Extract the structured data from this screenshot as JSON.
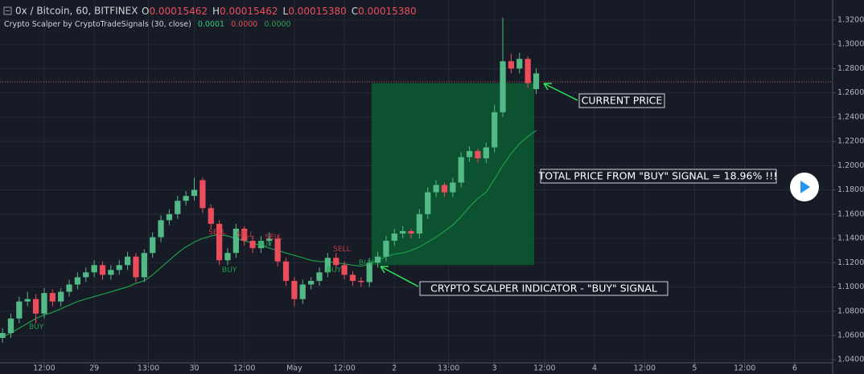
{
  "chart_data": {
    "type": "candlestick",
    "title": "0x / Bitcoin, 60, BITFINEX",
    "ohlc_header": [
      {
        "label": "O",
        "value": "0.00015462"
      },
      {
        "label": "H",
        "value": "0.00015462"
      },
      {
        "label": "L",
        "value": "0.00015380"
      },
      {
        "label": "C",
        "value": "0.00015380"
      }
    ],
    "indicator": {
      "name": "Crypto Scalper by CryptoTradeSignals (30, close)",
      "readouts": [
        "0.0001",
        "0.0000",
        "0.0000"
      ],
      "readout_colors": [
        "#26d07c",
        "#e0505c",
        "#2e9e55"
      ],
      "color": "#1e9e4a",
      "values": [
        1.059,
        1.062,
        1.066,
        1.07,
        1.074,
        1.077,
        1.079,
        1.082,
        1.085,
        1.088,
        1.09,
        1.092,
        1.094,
        1.096,
        1.098,
        1.1,
        1.103,
        1.105,
        1.11,
        1.116,
        1.122,
        1.128,
        1.133,
        1.137,
        1.14,
        1.142,
        1.143,
        1.142,
        1.14,
        1.138,
        1.136,
        1.134,
        1.132,
        1.13,
        1.128,
        1.126,
        1.124,
        1.122,
        1.121,
        1.121,
        1.12,
        1.119,
        1.118,
        1.117,
        1.119,
        1.122,
        1.125,
        1.127,
        1.128,
        1.13,
        1.133,
        1.137,
        1.141,
        1.146,
        1.151,
        1.158,
        1.166,
        1.173,
        1.178,
        1.189,
        1.2,
        1.21,
        1.218,
        1.224,
        1.229
      ]
    },
    "up_color": "#53b987",
    "down_color": "#eb4d5c",
    "x": [
      2,
      4,
      6,
      8,
      10,
      12,
      14,
      16,
      18,
      20,
      22,
      24,
      26,
      28,
      30,
      32,
      34,
      36,
      38,
      40,
      42,
      44,
      46,
      48,
      50,
      52,
      54,
      56,
      58,
      60,
      62,
      64,
      66,
      68,
      70,
      72,
      74,
      76,
      78,
      80,
      82,
      84,
      86,
      88,
      90,
      92,
      94,
      96,
      98,
      100,
      102,
      104,
      106,
      108,
      110,
      112,
      114,
      116,
      118,
      120,
      122,
      124,
      126,
      128,
      130
    ],
    "open": [
      1.058,
      1.062,
      1.074,
      1.088,
      1.09,
      1.078,
      1.095,
      1.088,
      1.096,
      1.102,
      1.108,
      1.112,
      1.118,
      1.11,
      1.114,
      1.118,
      1.125,
      1.108,
      1.128,
      1.141,
      1.155,
      1.16,
      1.171,
      1.175,
      1.188,
      1.165,
      1.152,
      1.122,
      1.128,
      1.148,
      1.138,
      1.132,
      1.138,
      1.14,
      1.121,
      1.105,
      1.09,
      1.102,
      1.105,
      1.112,
      1.124,
      1.118,
      1.11,
      1.105,
      1.104,
      1.12,
      1.125,
      1.138,
      1.144,
      1.146,
      1.144,
      1.16,
      1.178,
      1.184,
      1.178,
      1.186,
      1.207,
      1.212,
      1.206,
      1.215,
      1.244,
      1.286,
      1.28,
      1.288,
      1.263
    ],
    "high": [
      1.066,
      1.078,
      1.092,
      1.096,
      1.094,
      1.099,
      1.098,
      1.099,
      1.106,
      1.112,
      1.116,
      1.122,
      1.121,
      1.118,
      1.122,
      1.129,
      1.128,
      1.131,
      1.145,
      1.159,
      1.164,
      1.175,
      1.179,
      1.19,
      1.19,
      1.168,
      1.155,
      1.132,
      1.152,
      1.15,
      1.142,
      1.142,
      1.145,
      1.143,
      1.124,
      1.108,
      1.106,
      1.108,
      1.116,
      1.128,
      1.128,
      1.121,
      1.113,
      1.108,
      1.124,
      1.129,
      1.142,
      1.148,
      1.15,
      1.148,
      1.164,
      1.182,
      1.188,
      1.186,
      1.19,
      1.211,
      1.216,
      1.214,
      1.219,
      1.25,
      1.322,
      1.292,
      1.293,
      1.29,
      1.28
    ],
    "low": [
      1.054,
      1.058,
      1.07,
      1.084,
      1.07,
      1.074,
      1.084,
      1.084,
      1.092,
      1.098,
      1.104,
      1.108,
      1.106,
      1.106,
      1.11,
      1.114,
      1.104,
      1.104,
      1.124,
      1.137,
      1.151,
      1.156,
      1.167,
      1.171,
      1.161,
      1.148,
      1.118,
      1.118,
      1.124,
      1.134,
      1.128,
      1.128,
      1.134,
      1.117,
      1.101,
      1.084,
      1.086,
      1.098,
      1.101,
      1.108,
      1.114,
      1.106,
      1.101,
      1.1,
      1.1,
      1.116,
      1.121,
      1.134,
      1.14,
      1.14,
      1.14,
      1.156,
      1.174,
      1.174,
      1.174,
      1.182,
      1.203,
      1.202,
      1.202,
      1.211,
      1.24,
      1.276,
      1.276,
      1.264,
      1.259
    ],
    "close": [
      1.062,
      1.074,
      1.088,
      1.09,
      1.078,
      1.095,
      1.088,
      1.096,
      1.102,
      1.108,
      1.112,
      1.118,
      1.11,
      1.114,
      1.118,
      1.125,
      1.108,
      1.128,
      1.141,
      1.155,
      1.16,
      1.171,
      1.175,
      1.18,
      1.165,
      1.152,
      1.122,
      1.128,
      1.148,
      1.138,
      1.132,
      1.138,
      1.14,
      1.121,
      1.105,
      1.09,
      1.102,
      1.105,
      1.112,
      1.124,
      1.118,
      1.11,
      1.105,
      1.104,
      1.12,
      1.125,
      1.138,
      1.144,
      1.146,
      1.144,
      1.16,
      1.178,
      1.184,
      1.178,
      1.186,
      1.207,
      1.212,
      1.206,
      1.215,
      1.244,
      1.286,
      1.28,
      1.288,
      1.268,
      1.276
    ],
    "signals": [
      {
        "text": "BUY",
        "x": 10.1,
        "y": 1.067,
        "color": "#1e9e4a"
      },
      {
        "text": "SELL",
        "x": 53.5,
        "y": 1.145,
        "color": "#c43a45"
      },
      {
        "text": "BUY",
        "x": 56.4,
        "y": 1.114,
        "color": "#1e9e4a"
      },
      {
        "text": "SELL",
        "x": 60.2,
        "y": 1.143,
        "color": "#c43a45"
      },
      {
        "text": "BUY",
        "x": 65,
        "y": 1.135,
        "color": "#1e9e4a"
      },
      {
        "text": "SELL",
        "x": 67,
        "y": 1.141,
        "color": "#c43a45"
      },
      {
        "text": "BUY",
        "x": 81.5,
        "y": 1.114,
        "color": "#1e9e4a"
      },
      {
        "text": "SELL",
        "x": 83.4,
        "y": 1.131,
        "color": "#c43a45"
      },
      {
        "text": "BUY",
        "x": 89.2,
        "y": 1.12,
        "color": "#1e9e4a"
      }
    ],
    "signal_box": {
      "x": [
        90.5,
        129.5
      ],
      "y": [
        1.118,
        1.268
      ],
      "color": "#0b5a32"
    },
    "current_price": {
      "value": 1.269,
      "color": "#e0505c"
    },
    "callouts": [
      "CURRENT PRICE",
      "TOTAL PRICE FROM \"BUY\" SIGNAL = 18.96% !!!",
      "CRYPTO SCALPER INDICATOR - \"BUY\" SIGNAL"
    ],
    "xlim": [
      1.4,
      201.1
    ],
    "ylim": [
      1.0375,
      1.3365
    ],
    "xticks": [
      {
        "value": 12,
        "label": "12:00"
      },
      {
        "value": 24,
        "label": "29"
      },
      {
        "value": 37,
        "label": "13:00"
      },
      {
        "value": 48,
        "label": "30"
      },
      {
        "value": 60,
        "label": "12:00"
      },
      {
        "value": 72,
        "label": "May"
      },
      {
        "value": 84,
        "label": "12:00"
      },
      {
        "value": 96,
        "label": "2"
      },
      {
        "value": 109,
        "label": "13:00"
      },
      {
        "value": 120,
        "label": "3"
      },
      {
        "value": 132,
        "label": "12:00"
      },
      {
        "value": 144,
        "label": "4"
      },
      {
        "value": 156,
        "label": "12:00"
      },
      {
        "value": 168,
        "label": "5"
      },
      {
        "value": 180,
        "label": "12:00"
      },
      {
        "value": 192,
        "label": "6"
      }
    ],
    "yticks": [
      {
        "value": 1.04,
        "label": "1.0400"
      },
      {
        "value": 1.06,
        "label": "1.0600"
      },
      {
        "value": 1.08,
        "label": "1.0800"
      },
      {
        "value": 1.1,
        "label": "1.1000"
      },
      {
        "value": 1.12,
        "label": "1.1200"
      },
      {
        "value": 1.14,
        "label": "1.1400"
      },
      {
        "value": 1.16,
        "label": "1.1600"
      },
      {
        "value": 1.18,
        "label": "1.1800"
      },
      {
        "value": 1.2,
        "label": "1.2000"
      },
      {
        "value": 1.22,
        "label": "1.2200"
      },
      {
        "value": 1.24,
        "label": "1.2400"
      },
      {
        "value": 1.26,
        "label": "1.2600"
      },
      {
        "value": 1.28,
        "label": "1.2800"
      },
      {
        "value": 1.3,
        "label": "1.3000"
      },
      {
        "value": 1.32,
        "label": "1.3200"
      }
    ],
    "grid": true
  }
}
